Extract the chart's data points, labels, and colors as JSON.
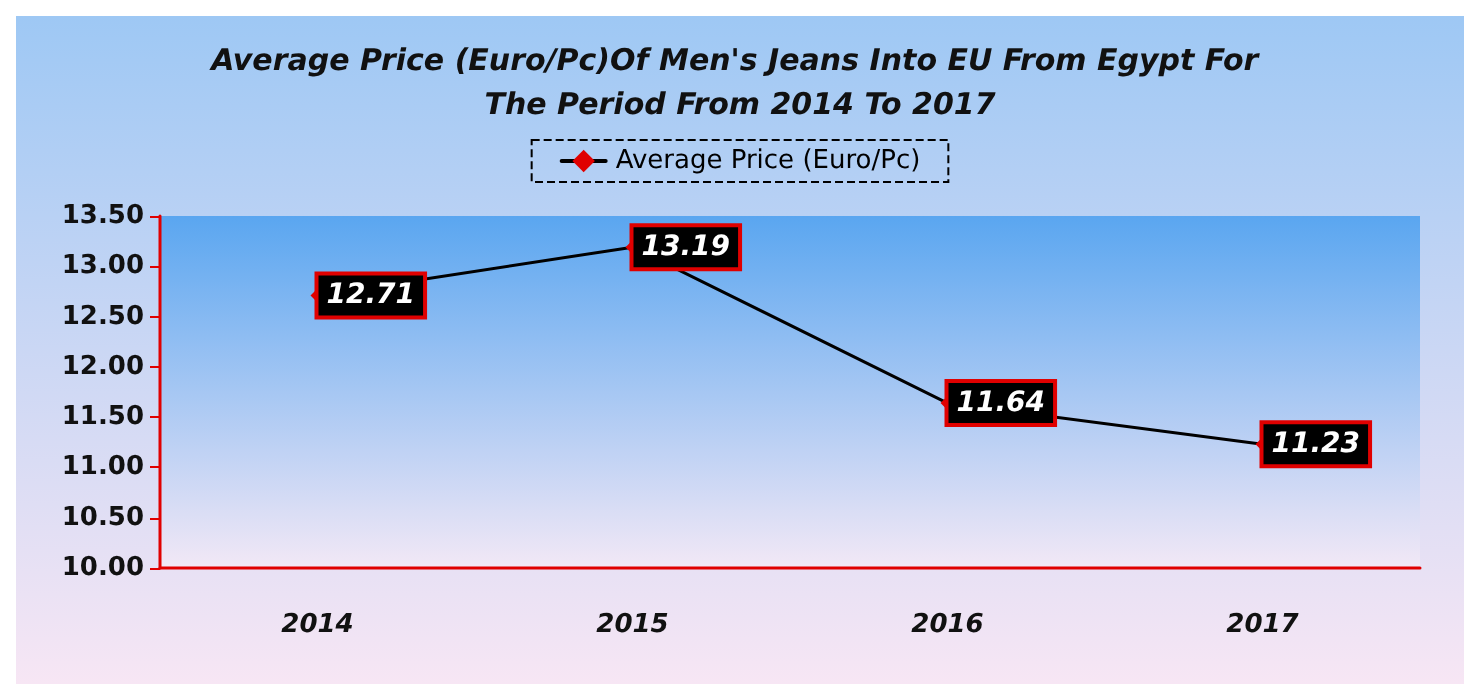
{
  "chart_data": {
    "type": "line",
    "title": "Average Price (Euro/Pc)Of Men's Jeans Into EU From Egypt For The Period From 2014 To 2017",
    "categories": [
      "2014",
      "2015",
      "2016",
      "2017"
    ],
    "series": [
      {
        "name": "Average Price (Euro/Pc)",
        "color": "#000000",
        "values": [
          12.71,
          13.19,
          11.64,
          11.23
        ]
      }
    ],
    "ylim": [
      10,
      13.5
    ],
    "yticks": [
      {
        "value": 10,
        "label": "10.00"
      },
      {
        "value": 10.5,
        "label": "10.50"
      },
      {
        "value": 11,
        "label": "11.00"
      },
      {
        "value": 11.5,
        "label": "11.50"
      },
      {
        "value": 12,
        "label": "12.00"
      },
      {
        "value": 12.5,
        "label": "12.50"
      },
      {
        "value": 13,
        "label": "13.00"
      },
      {
        "value": 13.5,
        "label": "13.50"
      }
    ],
    "grid": false,
    "legend": "top",
    "marker": "diamond",
    "line_style": "solid",
    "data_labels": true
  }
}
